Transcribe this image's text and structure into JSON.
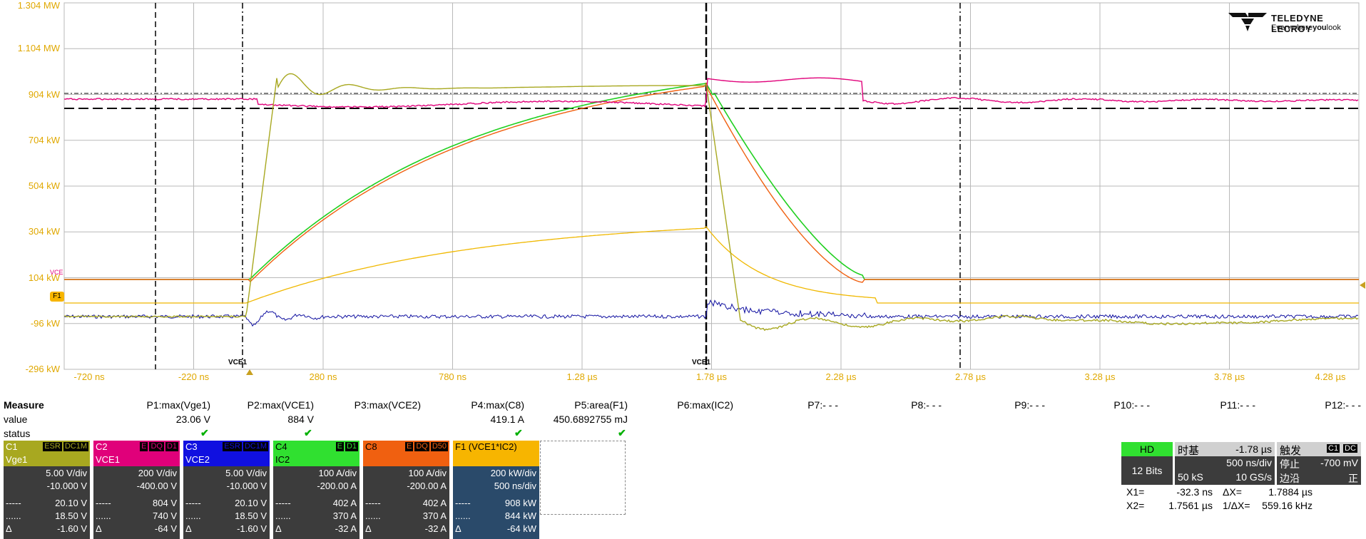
{
  "scope": {
    "y_labels": [
      "1.304 MW",
      "1.104 MW",
      "904 kW",
      "704 kW",
      "504 kW",
      "304 kW",
      "104 kW",
      "-96 kW",
      "-296 kW"
    ],
    "x_labels": [
      "-720 ns",
      "-220 ns",
      "280 ns",
      "780 ns",
      "1.28 µs",
      "1.78 µs",
      "2.28 µs",
      "2.78 µs",
      "3.28 µs",
      "3.78 µs",
      "4.28 µs"
    ],
    "f1_marker": "F1",
    "vce_marker_left": "VCE1",
    "vce_marker_right": "VCE1",
    "trace_marker": "VCE",
    "colors": {
      "vge1": "#a8a820",
      "vce1": "#e0007a",
      "vce2": "#1010a0",
      "ic2": "#20d020",
      "c8": "#f06010",
      "f1": "#f0b800",
      "grid": "#b8b8b8"
    }
  },
  "logo": {
    "word": "TELEDYNE LECROY",
    "tag_a": "Everywhere",
    "tag_b": "you",
    "tag_c": "look"
  },
  "measure": {
    "title": "Measure",
    "row_value": "value",
    "row_status": "status",
    "params": [
      {
        "name": "P1:max(Vge1)",
        "value": "23.06 V",
        "ok": true
      },
      {
        "name": "P2:max(VCE1)",
        "value": "884 V",
        "ok": true
      },
      {
        "name": "P3:max(VCE2)",
        "value": "",
        "ok": false
      },
      {
        "name": "P4:max(C8)",
        "value": "419.1 A",
        "ok": true
      },
      {
        "name": "P5:area(F1)",
        "value": "450.6892755 mJ",
        "ok": true
      },
      {
        "name": "P6:max(IC2)",
        "value": "",
        "ok": false
      },
      {
        "name": "P7:- - -",
        "value": "",
        "ok": false
      },
      {
        "name": "P8:- - -",
        "value": "",
        "ok": false
      },
      {
        "name": "P9:- - -",
        "value": "",
        "ok": false
      },
      {
        "name": "P10:- - -",
        "value": "",
        "ok": false
      },
      {
        "name": "P11:- - -",
        "value": "",
        "ok": false
      },
      {
        "name": "P12:- - -",
        "value": "",
        "ok": false
      }
    ]
  },
  "traces": [
    {
      "id": "C1",
      "badges": [
        "ESR",
        "DC1M"
      ],
      "label": "Vge1",
      "vdiv": "5.00 V/div",
      "offset": "-10.000 V",
      "r1": "20.10 V",
      "r2": "18.50 V",
      "r3": "-1.60 V",
      "hbg": "#a8a820",
      "hfg": "#fff",
      "lbg": "#a8a820",
      "lfg": "#fff"
    },
    {
      "id": "C2",
      "badges": [
        "E",
        "DQ",
        "D1"
      ],
      "label": "VCE1",
      "vdiv": "200 V/div",
      "offset": "-400.00 V",
      "r1": "804 V",
      "r2": "740 V",
      "r3": "-64 V",
      "hbg": "#e0007a",
      "hfg": "#fff",
      "lbg": "#e0007a",
      "lfg": "#fff"
    },
    {
      "id": "C3",
      "badges": [
        "ESR",
        "DC1M"
      ],
      "label": "VCE2",
      "vdiv": "5.00 V/div",
      "offset": "-10.000 V",
      "r1": "20.10 V",
      "r2": "18.50 V",
      "r3": "-1.60 V",
      "hbg": "#1010e0",
      "hfg": "#fff",
      "lbg": "#1010e0",
      "lfg": "#fff"
    },
    {
      "id": "C4",
      "badges": [
        "E",
        "D1"
      ],
      "label": "IC2",
      "vdiv": "100 A/div",
      "offset": "-200.00 A",
      "r1": "402 A",
      "r2": "370 A",
      "r3": "-32 A",
      "hbg": "#30e030",
      "hfg": "#000",
      "lbg": "#30e030",
      "lfg": "#000"
    },
    {
      "id": "C8",
      "badges": [
        "E",
        "DQ",
        "D50"
      ],
      "label": "",
      "vdiv": "100 A/div",
      "offset": "-200.00 A",
      "r1": "402 A",
      "r2": "370 A",
      "r3": "-32 A",
      "hbg": "#f06010",
      "hfg": "#000",
      "lbg": "#f06010",
      "lfg": "#000"
    },
    {
      "id": "F1",
      "badges": [],
      "label": "(VCE1*IC2)",
      "vdiv": "200 kW/div",
      "offset": "500 ns/div",
      "r1": "908 kW",
      "r2": "844 kW",
      "r3": "-64 kW",
      "hbg": "#f7b500",
      "hfg": "#000",
      "lbg": "#f7b500",
      "lfg": "#000"
    }
  ],
  "row_keys": [
    "-----",
    "......",
    "Δ"
  ],
  "timebase": {
    "hd": "HD",
    "bits": "12 Bits",
    "label": "时基",
    "delay": "-1.78 µs",
    "div": "500 ns/div",
    "samples": "50 kS",
    "rate": "10 GS/s",
    "trig_label": "触发",
    "trig_src": "C1",
    "trig_cpl": "DC",
    "stop": "停止",
    "level": "-700 mV",
    "edge": "边沿",
    "slope": "正"
  },
  "cursors": {
    "x1_label": "X1=",
    "x1": "-32.3 ns",
    "dx_label": "ΔX=",
    "dx": "1.7884 µs",
    "x2_label": "X2=",
    "x2": "1.7561 µs",
    "inv_label": "1/ΔX=",
    "inv": "559.16 kHz"
  }
}
